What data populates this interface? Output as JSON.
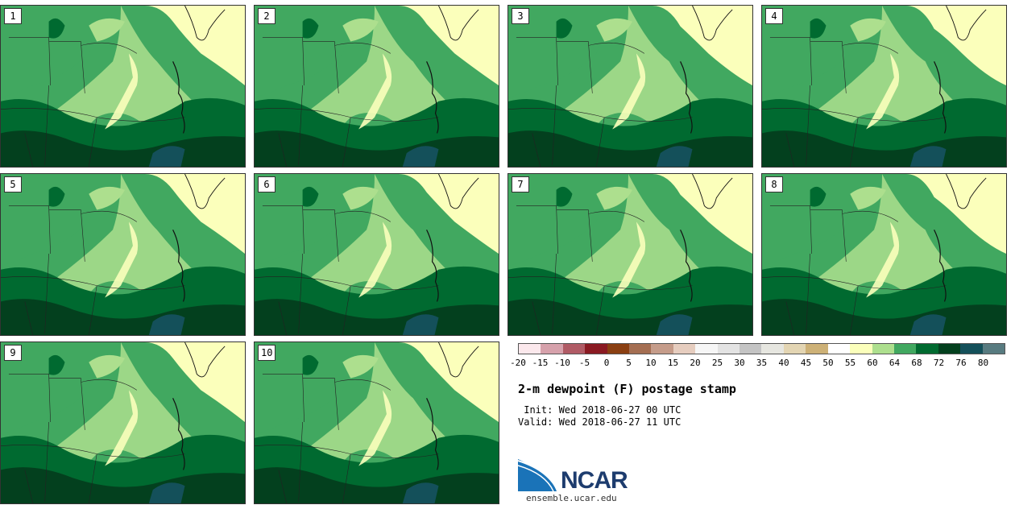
{
  "title": "2-m dewpoint (F) postage stamp",
  "init_label": " Init: Wed 2018-06-27 00 UTC",
  "valid_label": "Valid: Wed 2018-06-27 11 UTC",
  "logo_text": "NCAR",
  "url": "ensemble.ucar.edu",
  "panels": [
    {
      "label": "1"
    },
    {
      "label": "2"
    },
    {
      "label": "3"
    },
    {
      "label": "4"
    },
    {
      "label": "5"
    },
    {
      "label": "6"
    },
    {
      "label": "7"
    },
    {
      "label": "8"
    },
    {
      "label": "9"
    },
    {
      "label": "10"
    }
  ],
  "colorbar": {
    "colors": [
      "#fbe8ec",
      "#d6a1ab",
      "#b05b65",
      "#8a1a22",
      "#8a3f12",
      "#a46e52",
      "#c59c8a",
      "#e6cdbf",
      "#f6f6f6",
      "#e3e3e3",
      "#c4c4c4",
      "#e6e6e0",
      "#e3d5b3",
      "#cdb177",
      "#ffffff",
      "#fbffbb",
      "#addf8e",
      "#41a860",
      "#006a30",
      "#03401e",
      "#14505a",
      "#587b80"
    ],
    "ticks": [
      "-20",
      "-15",
      "-10",
      "-5",
      "0",
      "5",
      "10",
      "15",
      "20",
      "25",
      "30",
      "35",
      "40",
      "45",
      "50",
      "55",
      "60",
      "64",
      "68",
      "72",
      "76",
      "80"
    ]
  },
  "map_colors": {
    "lt_yellow": "#fbffbb",
    "lt_green": "#addf8e",
    "md_green": "#41a860",
    "dk_green": "#006a30",
    "vdk_green": "#03401e",
    "teal": "#14505a",
    "white": "#ffffff"
  }
}
